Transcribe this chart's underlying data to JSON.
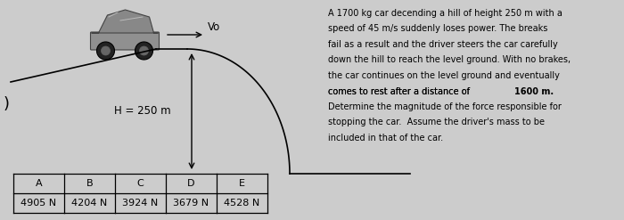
{
  "background_color": "#cccccc",
  "title_text_lines": [
    "A 1700 kg car decending a hill of height 250 m with a",
    "speed of 45 m/s suddenly loses power. The breaks",
    "fail as a result and the driver steers the car carefully",
    "down the hill to reach the level ground. With no brakes,",
    "the car continues on the level ground and eventually",
    "comes to rest after a distance of ",
    "Determine the magnitude of the force responsible for",
    "stopping the car.  Assume the driver's mass to be",
    "included in that of the car."
  ],
  "bold_part": "1600 m.",
  "h_label": "H = 250 m",
  "vo_label": "Vo",
  "table_headers": [
    "A",
    "B",
    "C",
    "D",
    "E"
  ],
  "table_values": [
    "4905 N",
    "4204 N",
    "3924 N",
    "3679 N",
    "4528 N"
  ],
  "text_color": "#000000",
  "hill_color": "#000000",
  "left_bracket": ")",
  "car_body_color": "#888888",
  "car_edge_color": "#444444",
  "wheel_color": "#222222",
  "car_roof_color": "#aaaaaa"
}
